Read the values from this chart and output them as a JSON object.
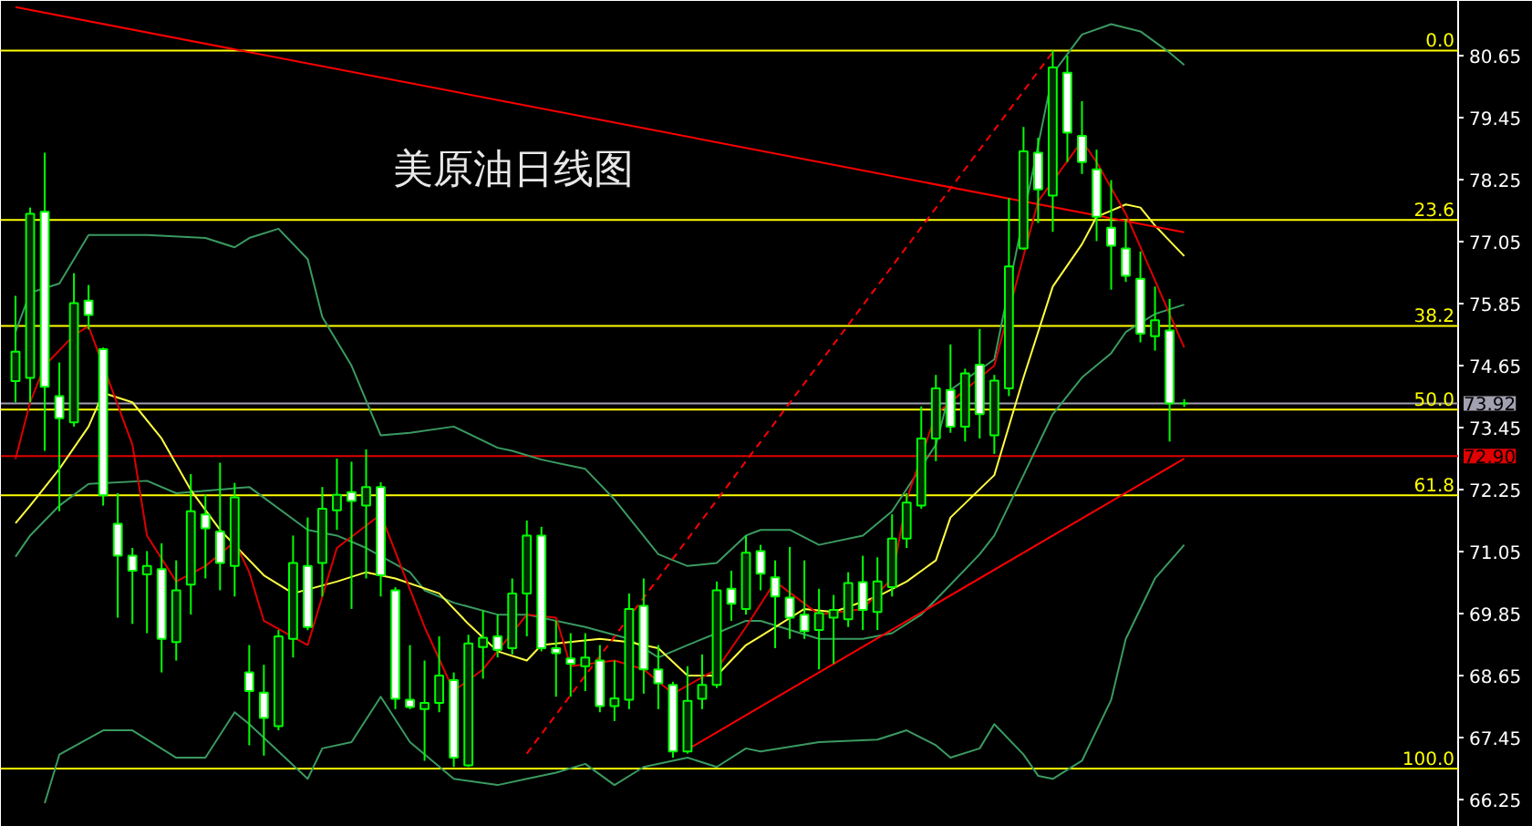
{
  "chart_data": {
    "type": "candlestick",
    "title": "美原油日线图",
    "categories": [
      null,
      null,
      null,
      null,
      null,
      null,
      null,
      null,
      null,
      null,
      null,
      null,
      null,
      null,
      null,
      null,
      null,
      null,
      null,
      null,
      null,
      null,
      null,
      null,
      null,
      null,
      null,
      null,
      null,
      null,
      null,
      null,
      null,
      null,
      null,
      null,
      null,
      null,
      null,
      null,
      null,
      null,
      null,
      null,
      null,
      null,
      null,
      null,
      null,
      null,
      null,
      null,
      null,
      null,
      null,
      null,
      null,
      null,
      null,
      null,
      null,
      null,
      null,
      null,
      null,
      null,
      null,
      null,
      null,
      null,
      null,
      null,
      null,
      null,
      null,
      null,
      null,
      null,
      null,
      null,
      null
    ],
    "color": "#00ff00",
    "ohlc": [
      [
        74.35,
        76.0,
        73.94,
        74.92
      ],
      [
        74.41,
        77.71,
        73.94,
        77.59
      ],
      [
        77.63,
        78.77,
        73.0,
        74.24
      ],
      [
        74.06,
        74.71,
        71.83,
        73.63
      ],
      [
        73.55,
        76.44,
        73.47,
        75.86
      ],
      [
        75.91,
        76.21,
        75.35,
        75.63
      ],
      [
        74.97,
        75.0,
        71.94,
        72.14
      ],
      [
        71.59,
        72.18,
        69.77,
        70.97
      ],
      [
        70.97,
        71.12,
        69.65,
        70.68
      ],
      [
        70.61,
        71.06,
        69.47,
        70.77
      ],
      [
        70.71,
        71.21,
        68.71,
        69.36
      ],
      [
        69.3,
        70.88,
        68.94,
        70.3
      ],
      [
        70.41,
        72.55,
        69.83,
        71.83
      ],
      [
        71.77,
        72.15,
        70.53,
        71.5
      ],
      [
        71.44,
        72.77,
        70.3,
        70.83
      ],
      [
        70.77,
        72.38,
        70.18,
        72.1
      ],
      [
        68.71,
        69.24,
        67.3,
        68.35
      ],
      [
        68.32,
        68.86,
        67.1,
        67.83
      ],
      [
        67.67,
        69.53,
        67.59,
        69.41
      ],
      [
        69.36,
        71.36,
        69.0,
        70.83
      ],
      [
        70.77,
        71.71,
        69.53,
        69.59
      ],
      [
        70.83,
        72.3,
        70.18,
        71.88
      ],
      [
        71.85,
        72.85,
        71.47,
        72.15
      ],
      [
        72.2,
        72.79,
        69.94,
        72.03
      ],
      [
        71.94,
        73.03,
        70.53,
        72.3
      ],
      [
        72.3,
        72.39,
        70.18,
        70.59
      ],
      [
        70.3,
        70.36,
        68.0,
        68.2
      ],
      [
        68.18,
        69.24,
        68.0,
        68.04
      ],
      [
        68.0,
        68.94,
        67.0,
        68.12
      ],
      [
        68.12,
        69.41,
        67.94,
        68.65
      ],
      [
        68.56,
        68.71,
        66.88,
        67.06
      ],
      [
        66.91,
        69.44,
        66.88,
        69.27
      ],
      [
        69.2,
        69.91,
        68.59,
        69.38
      ],
      [
        69.41,
        69.83,
        69.0,
        69.15
      ],
      [
        69.18,
        70.53,
        69.06,
        70.24
      ],
      [
        70.24,
        71.65,
        69.41,
        71.36
      ],
      [
        71.36,
        71.53,
        69.12,
        69.18
      ],
      [
        69.18,
        69.71,
        68.24,
        69.08
      ],
      [
        68.98,
        69.47,
        68.24,
        68.88
      ],
      [
        68.83,
        69.47,
        68.35,
        69.0
      ],
      [
        68.94,
        69.24,
        67.94,
        68.06
      ],
      [
        68.06,
        68.94,
        67.77,
        68.21
      ],
      [
        68.18,
        70.24,
        68.0,
        69.94
      ],
      [
        70.0,
        70.53,
        68.3,
        68.77
      ],
      [
        68.77,
        69.24,
        68.0,
        68.5
      ],
      [
        68.47,
        68.53,
        67.06,
        67.18
      ],
      [
        67.18,
        68.83,
        67.14,
        68.16
      ],
      [
        68.2,
        69.06,
        68.0,
        68.47
      ],
      [
        68.47,
        70.47,
        68.41,
        70.3
      ],
      [
        70.33,
        70.68,
        69.71,
        70.04
      ],
      [
        69.94,
        71.36,
        69.83,
        71.03
      ],
      [
        71.06,
        71.18,
        70.3,
        70.62
      ],
      [
        70.55,
        70.88,
        69.18,
        70.18
      ],
      [
        70.16,
        71.14,
        69.36,
        69.77
      ],
      [
        69.83,
        70.88,
        69.36,
        69.51
      ],
      [
        69.53,
        70.33,
        68.77,
        69.86
      ],
      [
        69.77,
        70.21,
        68.88,
        69.92
      ],
      [
        69.74,
        70.65,
        69.59,
        70.44
      ],
      [
        70.46,
        70.97,
        69.53,
        69.92
      ],
      [
        69.88,
        70.94,
        69.53,
        70.47
      ],
      [
        70.36,
        71.77,
        70.18,
        71.3
      ],
      [
        71.3,
        72.18,
        71.12,
        72.0
      ],
      [
        71.94,
        73.86,
        71.88,
        73.24
      ],
      [
        73.24,
        74.47,
        72.8,
        74.21
      ],
      [
        74.18,
        75.06,
        73.35,
        73.47
      ],
      [
        73.47,
        74.59,
        73.18,
        74.5
      ],
      [
        74.67,
        75.36,
        73.24,
        73.71
      ],
      [
        73.3,
        74.47,
        72.94,
        74.36
      ],
      [
        74.21,
        77.89,
        74.06,
        76.57
      ],
      [
        76.92,
        79.27,
        76.89,
        78.8
      ],
      [
        78.77,
        79.06,
        77.41,
        78.06
      ],
      [
        77.94,
        80.75,
        77.24,
        80.42
      ],
      [
        80.32,
        80.65,
        78.59,
        79.16
      ],
      [
        79.1,
        79.77,
        78.36,
        78.59
      ],
      [
        78.45,
        78.83,
        77.06,
        77.53
      ],
      [
        77.32,
        78.24,
        76.12,
        76.97
      ],
      [
        76.92,
        77.47,
        76.27,
        76.39
      ],
      [
        76.33,
        76.86,
        75.1,
        75.27
      ],
      [
        75.22,
        76.18,
        74.94,
        75.53
      ],
      [
        75.33,
        75.94,
        73.18,
        73.92
      ],
      [
        73.92,
        74.0,
        73.85,
        73.92
      ]
    ],
    "series": [
      {
        "type": "line",
        "color": "#3a9a60",
        "values": [
          75.3,
          76.06,
          null,
          76.24,
          null,
          77.18,
          null,
          null,
          null,
          77.18,
          null,
          null,
          null,
          77.12,
          null,
          76.94,
          77.12,
          null,
          77.3,
          null,
          76.71,
          75.59,
          null,
          74.65,
          null,
          73.3,
          null,
          73.35,
          null,
          null,
          73.47,
          null,
          null,
          73.06,
          73.0,
          null,
          72.83,
          null,
          null,
          72.65,
          null,
          72.06,
          null,
          null,
          71.0,
          null,
          70.77,
          null,
          70.83,
          null,
          71.36,
          71.47,
          null,
          71.47,
          null,
          71.18,
          null,
          null,
          71.36,
          null,
          71.83,
          null,
          null,
          73.12,
          74.18,
          null,
          null,
          74.77,
          null,
          null,
          null,
          80.3,
          null,
          81.06,
          null,
          81.26,
          null,
          81.12,
          null,
          80.71,
          80.47
        ]
      },
      {
        "type": "line",
        "color": "#3a9a60",
        "values": [
          70.95,
          71.36,
          null,
          71.94,
          null,
          72.36,
          null,
          null,
          null,
          72.42,
          null,
          72.18,
          null,
          null,
          null,
          null,
          72.3,
          null,
          null,
          null,
          71.47,
          null,
          71.36,
          null,
          71.12,
          null,
          null,
          70.65,
          70.3,
          null,
          70.06,
          null,
          null,
          69.83,
          null,
          69.83,
          null,
          null,
          null,
          69.59,
          null,
          null,
          69.36,
          null,
          69.0,
          null,
          69.24,
          null,
          69.47,
          null,
          69.71,
          69.71,
          null,
          null,
          null,
          69.36,
          null,
          null,
          69.36,
          null,
          69.47,
          null,
          69.83,
          null,
          70.41,
          null,
          71.0,
          71.36,
          null,
          72.53,
          null,
          73.71,
          null,
          74.42,
          null,
          74.89,
          75.3,
          null,
          75.65,
          null,
          75.83
        ]
      },
      {
        "type": "line",
        "color": "#3a9a60",
        "values": [
          null,
          null,
          66.18,
          67.12,
          null,
          null,
          67.59,
          null,
          67.59,
          null,
          null,
          67.06,
          null,
          67.06,
          null,
          67.94,
          67.71,
          null,
          null,
          null,
          66.65,
          67.24,
          null,
          67.36,
          null,
          68.24,
          null,
          67.36,
          null,
          null,
          66.65,
          null,
          null,
          66.53,
          null,
          66.65,
          null,
          66.77,
          null,
          66.94,
          null,
          66.53,
          null,
          66.88,
          null,
          null,
          67.06,
          null,
          66.88,
          null,
          67.24,
          67.18,
          null,
          null,
          null,
          67.36,
          null,
          null,
          null,
          67.41,
          null,
          67.59,
          null,
          67.3,
          67.06,
          null,
          67.24,
          67.71,
          null,
          67.12,
          66.71,
          66.65,
          null,
          67.0,
          null,
          68.18,
          69.36,
          null,
          70.53,
          null,
          71.18
        ]
      },
      {
        "type": "line",
        "color": "#ffff40",
        "values": [
          71.6,
          71.94,
          null,
          72.65,
          null,
          73.47,
          74.12,
          null,
          73.94,
          null,
          73.24,
          null,
          72.24,
          null,
          71.47,
          null,
          null,
          70.59,
          null,
          70.24,
          null,
          null,
          70.47,
          null,
          70.65,
          null,
          70.53,
          null,
          null,
          70.24,
          null,
          69.65,
          null,
          69.12,
          null,
          68.94,
          69.24,
          null,
          null,
          null,
          69.36,
          null,
          69.3,
          null,
          69.18,
          null,
          68.65,
          null,
          68.65,
          null,
          69.24,
          69.41,
          null,
          null,
          69.94,
          null,
          69.88,
          null,
          null,
          70.18,
          null,
          70.47,
          null,
          70.88,
          71.71,
          null,
          null,
          72.53,
          null,
          74.42,
          null,
          76.18,
          null,
          77.0,
          77.53,
          null,
          77.77,
          77.71,
          77.36,
          null,
          76.77
        ]
      },
      {
        "type": "line",
        "color": "#dd0000",
        "values": [
          72.84,
          73.94,
          74.65,
          null,
          75.24,
          75.41,
          null,
          null,
          73.12,
          71.36,
          null,
          70.47,
          null,
          70.77,
          null,
          71.24,
          70.65,
          69.71,
          null,
          null,
          69.24,
          null,
          71.12,
          null,
          null,
          71.77,
          null,
          null,
          69.59,
          null,
          68.35,
          null,
          68.77,
          null,
          null,
          69.83,
          null,
          69.77,
          68.83,
          null,
          null,
          68.94,
          null,
          68.77,
          null,
          68.3,
          null,
          null,
          68.77,
          null,
          69.59,
          null,
          70.47,
          null,
          null,
          69.83,
          null,
          null,
          69.94,
          null,
          70.53,
          72.06,
          null,
          73.71,
          null,
          74.18,
          null,
          74.65,
          null,
          null,
          77.83,
          null,
          null,
          79.0,
          78.59,
          null,
          77.59,
          null,
          76.3,
          null,
          75.0
        ]
      },
      {
        "type": "line",
        "color": "#ff0000",
        "values": [
          81.59,
          null,
          null,
          null,
          null,
          null,
          null,
          null,
          null,
          null,
          null,
          null,
          null,
          null,
          null,
          null,
          null,
          null,
          null,
          null,
          null,
          null,
          null,
          null,
          null,
          null,
          null,
          null,
          null,
          null,
          null,
          null,
          null,
          null,
          null,
          null,
          null,
          null,
          null,
          null,
          null,
          null,
          null,
          null,
          null,
          null,
          null,
          null,
          null,
          null,
          null,
          null,
          null,
          null,
          null,
          null,
          null,
          null,
          null,
          null,
          null,
          null,
          null,
          null,
          null,
          null,
          null,
          null,
          null,
          null,
          null,
          null,
          null,
          null,
          null,
          null,
          null,
          null,
          null,
          null,
          77.23
        ]
      },
      {
        "type": "line",
        "color": "#ff0000",
        "values": [
          null,
          null,
          null,
          null,
          null,
          null,
          null,
          null,
          null,
          null,
          null,
          null,
          null,
          null,
          null,
          null,
          null,
          null,
          null,
          null,
          null,
          null,
          null,
          null,
          null,
          null,
          null,
          null,
          null,
          null,
          null,
          null,
          null,
          null,
          null,
          null,
          null,
          null,
          null,
          null,
          null,
          null,
          null,
          null,
          null,
          null,
          67.22,
          null,
          null,
          null,
          null,
          null,
          null,
          null,
          null,
          null,
          null,
          null,
          null,
          null,
          null,
          null,
          null,
          null,
          null,
          null,
          null,
          null,
          null,
          null,
          null,
          null,
          null,
          null,
          null,
          null,
          null,
          null,
          null,
          null,
          72.85
        ]
      },
      {
        "type": "line",
        "color": "#ff0000",
        "line_style": "dashed",
        "values": [
          null,
          null,
          null,
          null,
          null,
          null,
          null,
          null,
          null,
          null,
          null,
          null,
          null,
          null,
          null,
          null,
          null,
          null,
          null,
          null,
          null,
          null,
          null,
          null,
          null,
          null,
          null,
          null,
          null,
          null,
          null,
          null,
          null,
          null,
          null,
          67.14,
          null,
          null,
          null,
          null,
          null,
          null,
          null,
          null,
          null,
          null,
          null,
          null,
          null,
          null,
          null,
          null,
          null,
          null,
          null,
          null,
          null,
          null,
          null,
          null,
          null,
          null,
          null,
          null,
          null,
          null,
          null,
          null,
          null,
          null,
          null,
          80.72,
          null,
          null,
          null,
          null,
          null,
          null,
          null,
          null,
          null
        ]
      }
    ],
    "ref_lines": [
      {
        "axis": "y",
        "value": 80.75,
        "color": "#ffff00"
      },
      {
        "axis": "y",
        "value": 77.47,
        "color": "#ffff00"
      },
      {
        "axis": "y",
        "value": 75.42,
        "color": "#ffff00"
      },
      {
        "axis": "y",
        "value": 73.8,
        "color": "#ffff00"
      },
      {
        "axis": "y",
        "value": 72.14,
        "color": "#ffff00"
      },
      {
        "axis": "y",
        "value": 66.85,
        "color": "#ffff00"
      },
      {
        "axis": "y",
        "value": 73.92,
        "label": "73.92",
        "color": "#a0a0b0"
      },
      {
        "axis": "y",
        "value": 72.9,
        "label": "72.90",
        "color": "#e00000"
      }
    ],
    "annotations": [
      {
        "text": "0.0",
        "y": 80.75
      },
      {
        "text": "23.6",
        "y": 77.47
      },
      {
        "text": "38.2",
        "y": 75.42
      },
      {
        "text": "50.0",
        "y": 73.8
      },
      {
        "text": "61.8",
        "y": 72.14
      },
      {
        "text": "100.0",
        "y": 66.85
      }
    ],
    "ylim": [
      65.72,
      81.71
    ],
    "yticks": [
      66.25,
      67.45,
      68.65,
      69.85,
      71.05,
      72.25,
      73.45,
      74.65,
      75.85,
      77.05,
      78.25,
      79.45,
      80.65
    ],
    "grid": false
  }
}
